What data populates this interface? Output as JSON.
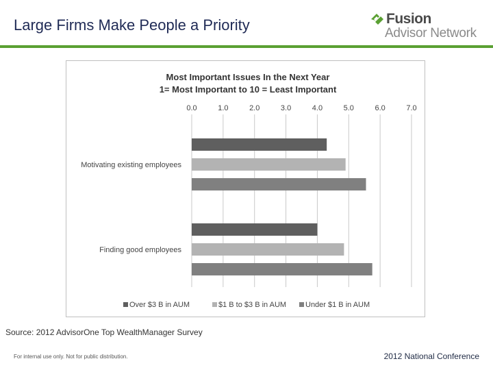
{
  "slide": {
    "title": "Large Firms Make People a Priority",
    "source": "Source: 2012 AdvisorOne Top WealthManager Survey",
    "footer_left": "For internal use only. Not for public distribution.",
    "footer_right": "2012 National Conference"
  },
  "logo": {
    "line1": "Fusion",
    "line2": "Advisor Network",
    "mark_color": "#5aa032"
  },
  "colors": {
    "accent_green": "#5aa032",
    "title_navy": "#1f2a55"
  },
  "chart_data": {
    "type": "bar",
    "orientation": "horizontal",
    "title": "Most Important Issues In the Next Year",
    "subtitle": "1= Most Important to 10 = Least Important",
    "categories": [
      "Motivating existing employees",
      "Finding good employees"
    ],
    "series": [
      {
        "name": "Over $3 B in AUM",
        "color": "#5f5f5f",
        "values": [
          4.3,
          4.0
        ]
      },
      {
        "name": "$1 B to $3 B in AUM",
        "color": "#b3b3b3",
        "values": [
          4.9,
          4.85
        ]
      },
      {
        "name": "Under $1 B in AUM",
        "color": "#808080",
        "values": [
          5.55,
          5.75
        ]
      }
    ],
    "x_ticks": [
      "0.0",
      "1.0",
      "2.0",
      "3.0",
      "4.0",
      "5.0",
      "6.0",
      "7.0"
    ],
    "xlim": [
      0,
      7
    ],
    "x_axis_position": "top",
    "grid": true,
    "legend_position": "bottom"
  }
}
